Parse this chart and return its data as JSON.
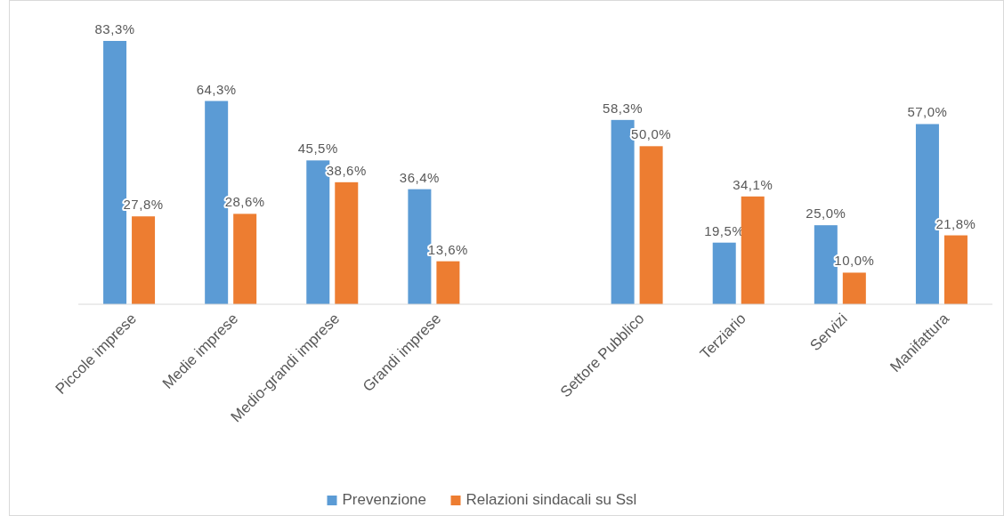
{
  "chart_data": {
    "type": "bar",
    "categories": [
      "Piccole imprese",
      "Medie imprese",
      "Medio-grandi imprese",
      "Grandi imprese",
      null,
      "Settore Pubblico",
      "Terziario",
      "Servizi",
      "Manifattura"
    ],
    "series": [
      {
        "name": "Prevenzione",
        "color": "#5b9bd5",
        "values": [
          83.3,
          64.3,
          45.5,
          36.4,
          null,
          58.3,
          19.5,
          25.0,
          57.0
        ],
        "value_labels": [
          "83,3%",
          "64,3%",
          "45,5%",
          "36,4%",
          null,
          "58,3%",
          "19,5%",
          "25,0%",
          "57,0%"
        ]
      },
      {
        "name": "Relazioni sindacali su Ssl",
        "color": "#ed7d31",
        "values": [
          27.8,
          28.6,
          38.6,
          13.6,
          null,
          50.0,
          34.1,
          10.0,
          21.8
        ],
        "value_labels": [
          "27,8%",
          "28,6%",
          "38,6%",
          "13,6%",
          null,
          "50,0%",
          "34,1%",
          "10,0%",
          "21,8%"
        ]
      }
    ],
    "legend": "bottom"
  }
}
